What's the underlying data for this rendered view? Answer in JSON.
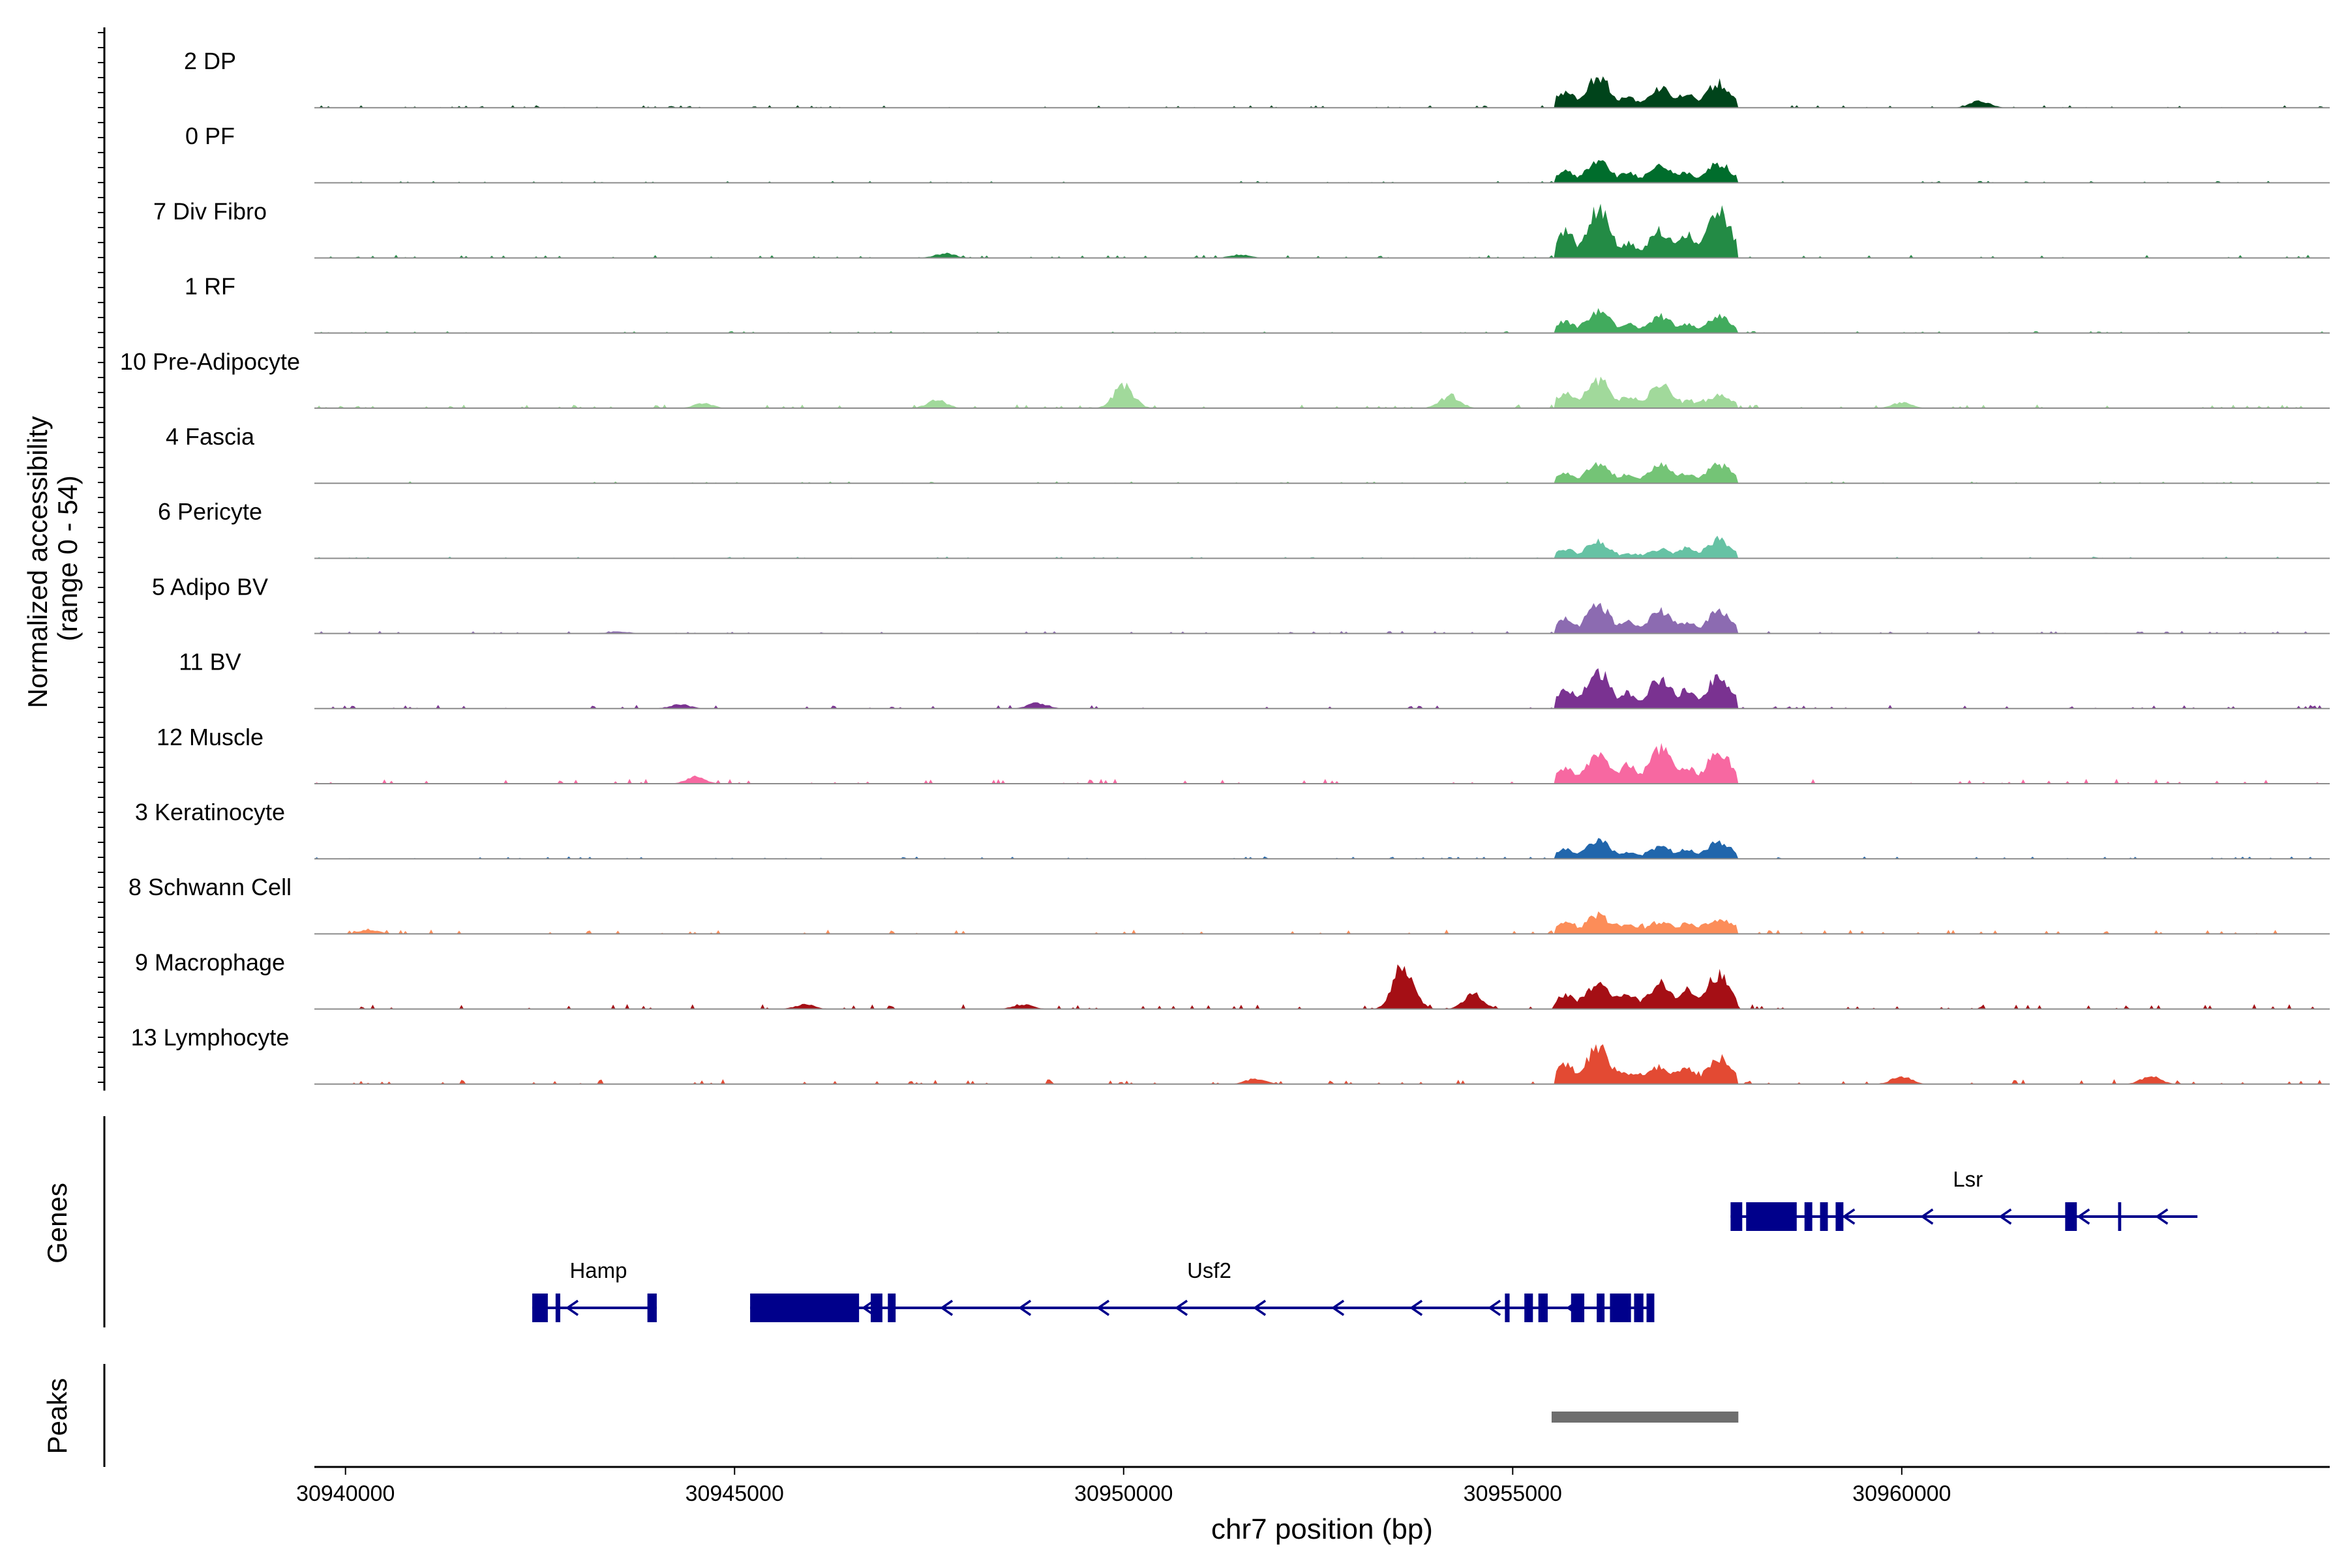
{
  "chart_data": {
    "type": "area",
    "title": "",
    "ylabel_line1": "Normalized accessibility",
    "ylabel_line2": "(range 0 - 54)",
    "y_range": [
      0,
      54
    ],
    "xlabel": "chr7 position (bp)",
    "xlim": [
      30939600,
      30965500
    ],
    "x_ticks": [
      "30940000",
      "30945000",
      "30950000",
      "30955000",
      "30960000"
    ],
    "x_tick_values": [
      30940000,
      30945000,
      30950000,
      30955000,
      30960000
    ],
    "main_peaks_bp": [
      30956100,
      30956900,
      30957650
    ],
    "tracks": [
      {
        "name": "2 DP",
        "color": "#00441b",
        "peaks": [
          54,
          34,
          44
        ],
        "base": 4,
        "extra": [
          [
            30961000,
            12
          ]
        ]
      },
      {
        "name": "0 PF",
        "color": "#006d2c",
        "peaks": [
          38,
          34,
          34
        ],
        "base": 3,
        "extra": []
      },
      {
        "name": "7 Div Fibro",
        "color": "#238b45",
        "peaks": [
          84,
          48,
          82
        ],
        "base": 5,
        "extra": [
          [
            30947700,
            8
          ],
          [
            30951500,
            6
          ]
        ]
      },
      {
        "name": "1 RF",
        "color": "#41ab5d",
        "peaks": [
          38,
          30,
          30
        ],
        "base": 3,
        "extra": []
      },
      {
        "name": "10 Pre-Adipocyte",
        "color": "#a1d99b",
        "peaks": [
          50,
          40,
          22
        ],
        "base": 6,
        "extra": [
          [
            30950000,
            40
          ],
          [
            30954200,
            22
          ],
          [
            30947600,
            14
          ],
          [
            30944600,
            8
          ],
          [
            30960000,
            10
          ]
        ]
      },
      {
        "name": "4 Fascia",
        "color": "#74c476",
        "peaks": [
          36,
          32,
          34
        ],
        "base": 3,
        "extra": []
      },
      {
        "name": "6 Pericyte",
        "color": "#66c2a4",
        "peaks": [
          30,
          16,
          34
        ],
        "base": 3,
        "extra": []
      },
      {
        "name": "5 Adipo BV",
        "color": "#8c6bb1",
        "peaks": [
          50,
          42,
          38
        ],
        "base": 4,
        "extra": [
          [
            30943500,
            4
          ]
        ]
      },
      {
        "name": "11 BV",
        "color": "#7a3291",
        "peaks": [
          66,
          52,
          58
        ],
        "base": 6,
        "extra": [
          [
            30948900,
            10
          ],
          [
            30944300,
            8
          ]
        ]
      },
      {
        "name": "12 Muscle",
        "color": "#f768a1",
        "peaks": [
          48,
          62,
          56
        ],
        "base": 8,
        "extra": [
          [
            30944500,
            12
          ]
        ]
      },
      {
        "name": "3 Keratinocyte",
        "color": "#2166ac",
        "peaks": [
          32,
          22,
          30
        ],
        "base": 4,
        "extra": []
      },
      {
        "name": "8 Schwann Cell",
        "color": "#fc8d59",
        "peaks": [
          34,
          22,
          28
        ],
        "base": 7,
        "extra": [
          [
            30940300,
            8
          ]
        ]
      },
      {
        "name": "9 Macrophage",
        "color": "#a50f15",
        "peaks": [
          44,
          46,
          62
        ],
        "base": 8,
        "extra": [
          [
            30953600,
            80
          ],
          [
            30954500,
            26
          ],
          [
            30945900,
            8
          ],
          [
            30948700,
            8
          ]
        ]
      },
      {
        "name": "13 Lymphocyte",
        "color": "#e34a33",
        "peaks": [
          64,
          32,
          48
        ],
        "base": 8,
        "extra": [
          [
            30951700,
            10
          ],
          [
            30960000,
            14
          ],
          [
            30963200,
            14
          ]
        ]
      }
    ],
    "genes_label": "Genes",
    "peaks_label": "Peaks",
    "gene_color": "#00008b",
    "genes": [
      {
        "name": "Lsr",
        "row": 1,
        "start": 30957800,
        "end": 30963800,
        "strand": "-",
        "exons": [
          [
            30957800,
            30957950
          ],
          [
            30958000,
            30958650
          ],
          [
            30958750,
            30958850
          ],
          [
            30958950,
            30959050
          ],
          [
            30959150,
            30959250
          ],
          [
            30962100,
            30962250
          ],
          [
            30962780,
            30962820
          ]
        ]
      },
      {
        "name": "Hamp",
        "row": 2,
        "start": 30942400,
        "end": 30944000,
        "strand": "-",
        "exons": [
          [
            30942400,
            30942600
          ],
          [
            30942700,
            30942760
          ],
          [
            30943880,
            30944000
          ]
        ]
      },
      {
        "name": "Usf2",
        "row": 2,
        "start": 30945200,
        "end": 30956800,
        "strand": "-",
        "exons": [
          [
            30945200,
            30946600
          ],
          [
            30946750,
            30946900
          ],
          [
            30946970,
            30947070
          ],
          [
            30954900,
            30954960
          ],
          [
            30955150,
            30955260
          ],
          [
            30955330,
            30955450
          ],
          [
            30955750,
            30955920
          ],
          [
            30956080,
            30956180
          ],
          [
            30956250,
            30956520
          ],
          [
            30956560,
            30956680
          ],
          [
            30956720,
            30956820
          ]
        ]
      }
    ],
    "peak_regions": [
      [
        30955500,
        30957900
      ]
    ]
  }
}
